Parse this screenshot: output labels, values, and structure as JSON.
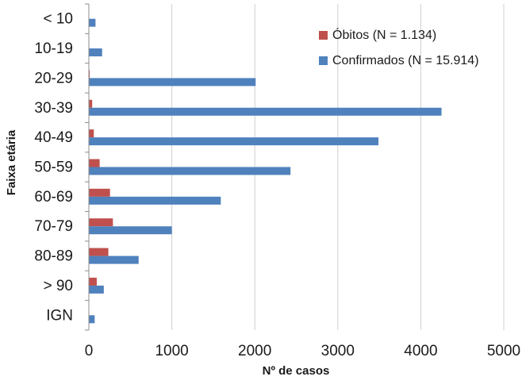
{
  "chart_data": {
    "type": "bar",
    "orientation": "horizontal",
    "categories": [
      "< 10",
      "10-19",
      "20-29",
      "30-39",
      "40-49",
      "50-59",
      "60-69",
      "70-79",
      "80-89",
      "> 90",
      "IGN"
    ],
    "series": [
      {
        "name": "Óbitos (N = 1.134)",
        "color": "#c0504d",
        "values": [
          0,
          5,
          10,
          40,
          60,
          130,
          255,
          290,
          235,
          95,
          0
        ]
      },
      {
        "name": "Confirmados (N = 15.914)",
        "color": "#4f81bd",
        "values": [
          80,
          160,
          2010,
          4250,
          3490,
          2430,
          1590,
          1000,
          600,
          180,
          70
        ]
      }
    ],
    "xlabel": "Nº de casos",
    "ylabel": "Faixa etária",
    "xlim": [
      0,
      5000
    ],
    "xticks": [
      "0",
      "1000",
      "2000",
      "3000",
      "4000",
      "5000"
    ],
    "grid": "vertical",
    "legend_position": "top-right"
  }
}
